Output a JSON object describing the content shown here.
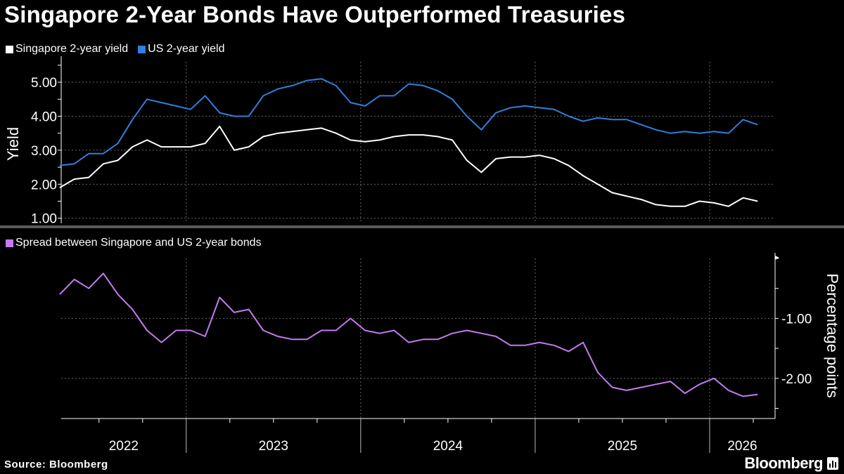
{
  "title": "Singapore 2-Year Bonds Have Outperformed Treasuries",
  "source": "Source: Bloomberg",
  "brand": "Bloomberg",
  "colors": {
    "singapore": "#ffffff",
    "us": "#2f7fdc",
    "spread": "#c57af0",
    "grid": "#666666"
  },
  "chart_data": [
    {
      "type": "line",
      "title": "",
      "ylabel": "Yield",
      "ylim": [
        0.85,
        5.6
      ],
      "yticks": [
        "1.00",
        "2.00",
        "3.00",
        "4.00",
        "5.00"
      ],
      "legend_position": "top-left",
      "grid": true,
      "x": [
        "2022-04",
        "2022-05",
        "2022-06",
        "2022-07",
        "2022-08",
        "2022-09",
        "2022-10",
        "2022-11",
        "2022-12",
        "2023-01",
        "2023-02",
        "2023-03",
        "2023-04",
        "2023-05",
        "2023-06",
        "2023-07",
        "2023-08",
        "2023-09",
        "2023-10",
        "2023-11",
        "2023-12",
        "2024-01",
        "2024-02",
        "2024-03",
        "2024-04",
        "2024-05",
        "2024-06",
        "2024-07",
        "2024-08",
        "2024-09",
        "2024-10",
        "2024-11",
        "2024-12",
        "2025-01",
        "2025-02",
        "2025-03",
        "2025-04",
        "2025-05",
        "2025-06",
        "2025-07",
        "2025-08",
        "2025-09",
        "2025-10",
        "2025-11",
        "2025-12",
        "2026-01",
        "2026-02",
        "2026-03",
        "2026-04"
      ],
      "series": [
        {
          "name": "Singapore 2-year yield",
          "values": [
            1.9,
            2.15,
            2.2,
            2.6,
            2.7,
            3.1,
            3.3,
            3.1,
            3.1,
            3.1,
            3.2,
            3.7,
            3.0,
            3.1,
            3.4,
            3.5,
            3.55,
            3.6,
            3.65,
            3.5,
            3.3,
            3.25,
            3.3,
            3.4,
            3.45,
            3.45,
            3.4,
            3.3,
            2.7,
            2.35,
            2.75,
            2.8,
            2.8,
            2.85,
            2.75,
            2.55,
            2.25,
            2.0,
            1.75,
            1.65,
            1.55,
            1.4,
            1.35,
            1.35,
            1.5,
            1.45,
            1.35,
            1.6,
            1.5
          ]
        },
        {
          "name": "US 2-year yield",
          "values": [
            2.55,
            2.6,
            2.9,
            2.9,
            3.2,
            3.9,
            4.5,
            4.4,
            4.3,
            4.2,
            4.6,
            4.1,
            4.0,
            4.0,
            4.6,
            4.8,
            4.9,
            5.05,
            5.1,
            4.9,
            4.4,
            4.3,
            4.6,
            4.6,
            4.95,
            4.9,
            4.75,
            4.5,
            4.0,
            3.6,
            4.1,
            4.25,
            4.3,
            4.25,
            4.2,
            4.0,
            3.85,
            3.95,
            3.9,
            3.9,
            3.75,
            3.6,
            3.5,
            3.55,
            3.5,
            3.55,
            3.5,
            3.9,
            3.75
          ]
        }
      ]
    },
    {
      "type": "line",
      "title": "",
      "ylabel": "Percentage points",
      "ylim": [
        -2.67,
        0.0
      ],
      "yticks": [
        "-1.00",
        "-2.00"
      ],
      "legend_position": "top-left",
      "grid": true,
      "x_ticks": [
        "2022",
        "2023",
        "2024",
        "2025",
        "2026"
      ],
      "series": [
        {
          "name": "Spread between Singapore and US 2-year bonds",
          "values": [
            -0.6,
            -0.35,
            -0.5,
            -0.25,
            -0.6,
            -0.85,
            -1.2,
            -1.4,
            -1.2,
            -1.2,
            -1.3,
            -0.65,
            -0.9,
            -0.85,
            -1.2,
            -1.3,
            -1.35,
            -1.35,
            -1.2,
            -1.2,
            -1.0,
            -1.2,
            -1.25,
            -1.2,
            -1.4,
            -1.35,
            -1.35,
            -1.25,
            -1.2,
            -1.25,
            -1.3,
            -1.45,
            -1.45,
            -1.4,
            -1.45,
            -1.55,
            -1.4,
            -1.9,
            -2.15,
            -2.2,
            -2.15,
            -2.1,
            -2.05,
            -2.25,
            -2.1,
            -2.0,
            -2.2,
            -2.3,
            -2.27
          ]
        }
      ]
    }
  ]
}
